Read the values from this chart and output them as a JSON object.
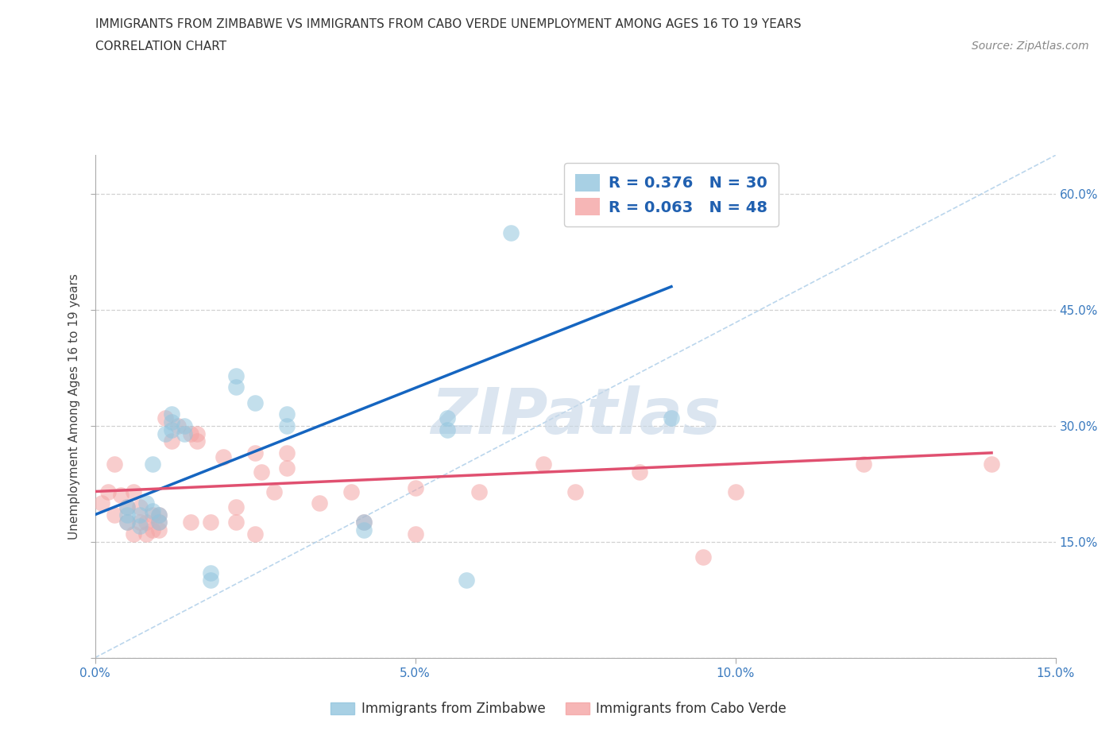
{
  "title_line1": "IMMIGRANTS FROM ZIMBABWE VS IMMIGRANTS FROM CABO VERDE UNEMPLOYMENT AMONG AGES 16 TO 19 YEARS",
  "title_line2": "CORRELATION CHART",
  "source": "Source: ZipAtlas.com",
  "ylabel": "Unemployment Among Ages 16 to 19 years",
  "xlim": [
    0.0,
    0.15
  ],
  "ylim": [
    0.0,
    0.65
  ],
  "xticks": [
    0.0,
    0.05,
    0.1,
    0.15
  ],
  "xtick_labels": [
    "0.0%",
    "5.0%",
    "10.0%",
    "15.0%"
  ],
  "yticks": [
    0.0,
    0.15,
    0.3,
    0.45,
    0.6
  ],
  "ytick_labels_right": [
    "",
    "15.0%",
    "30.0%",
    "45.0%",
    "60.0%"
  ],
  "legend_r1": "R = 0.376",
  "legend_n1": "N = 30",
  "legend_r2": "R = 0.063",
  "legend_n2": "N = 48",
  "zim_color": "#92c5de",
  "cabo_color": "#f4a4a4",
  "zim_line_color": "#1565c0",
  "cabo_line_color": "#e05070",
  "diagonal_line_color": "#aacce8",
  "watermark": "ZIPatlas",
  "background_color": "#ffffff",
  "grid_color": "#cccccc",
  "zim_scatter_x": [
    0.005,
    0.005,
    0.005,
    0.007,
    0.007,
    0.008,
    0.009,
    0.009,
    0.01,
    0.01,
    0.011,
    0.012,
    0.012,
    0.012,
    0.014,
    0.014,
    0.018,
    0.018,
    0.022,
    0.022,
    0.025,
    0.03,
    0.03,
    0.042,
    0.042,
    0.055,
    0.055,
    0.058,
    0.065,
    0.09
  ],
  "zim_scatter_y": [
    0.175,
    0.185,
    0.195,
    0.17,
    0.185,
    0.2,
    0.19,
    0.25,
    0.175,
    0.185,
    0.29,
    0.295,
    0.305,
    0.315,
    0.29,
    0.3,
    0.1,
    0.11,
    0.35,
    0.365,
    0.33,
    0.315,
    0.3,
    0.175,
    0.165,
    0.295,
    0.31,
    0.1,
    0.55,
    0.31
  ],
  "cabo_scatter_x": [
    0.001,
    0.002,
    0.003,
    0.003,
    0.004,
    0.005,
    0.005,
    0.006,
    0.006,
    0.007,
    0.007,
    0.008,
    0.008,
    0.009,
    0.009,
    0.01,
    0.01,
    0.01,
    0.011,
    0.012,
    0.013,
    0.015,
    0.015,
    0.016,
    0.016,
    0.018,
    0.02,
    0.022,
    0.022,
    0.025,
    0.025,
    0.026,
    0.028,
    0.03,
    0.03,
    0.035,
    0.04,
    0.042,
    0.05,
    0.05,
    0.06,
    0.07,
    0.075,
    0.085,
    0.095,
    0.1,
    0.12,
    0.14
  ],
  "cabo_scatter_y": [
    0.2,
    0.215,
    0.185,
    0.25,
    0.21,
    0.175,
    0.195,
    0.215,
    0.16,
    0.175,
    0.195,
    0.16,
    0.175,
    0.185,
    0.165,
    0.175,
    0.165,
    0.185,
    0.31,
    0.28,
    0.3,
    0.29,
    0.175,
    0.28,
    0.29,
    0.175,
    0.26,
    0.175,
    0.195,
    0.265,
    0.16,
    0.24,
    0.215,
    0.245,
    0.265,
    0.2,
    0.215,
    0.175,
    0.22,
    0.16,
    0.215,
    0.25,
    0.215,
    0.24,
    0.13,
    0.215,
    0.25,
    0.25
  ],
  "zim_line_x": [
    0.0,
    0.09
  ],
  "zim_line_y": [
    0.185,
    0.48
  ],
  "cabo_line_x": [
    0.0,
    0.14
  ],
  "cabo_line_y": [
    0.215,
    0.265
  ],
  "diagonal_line_x": [
    0.0,
    0.15
  ],
  "diagonal_line_y": [
    0.0,
    0.65
  ]
}
